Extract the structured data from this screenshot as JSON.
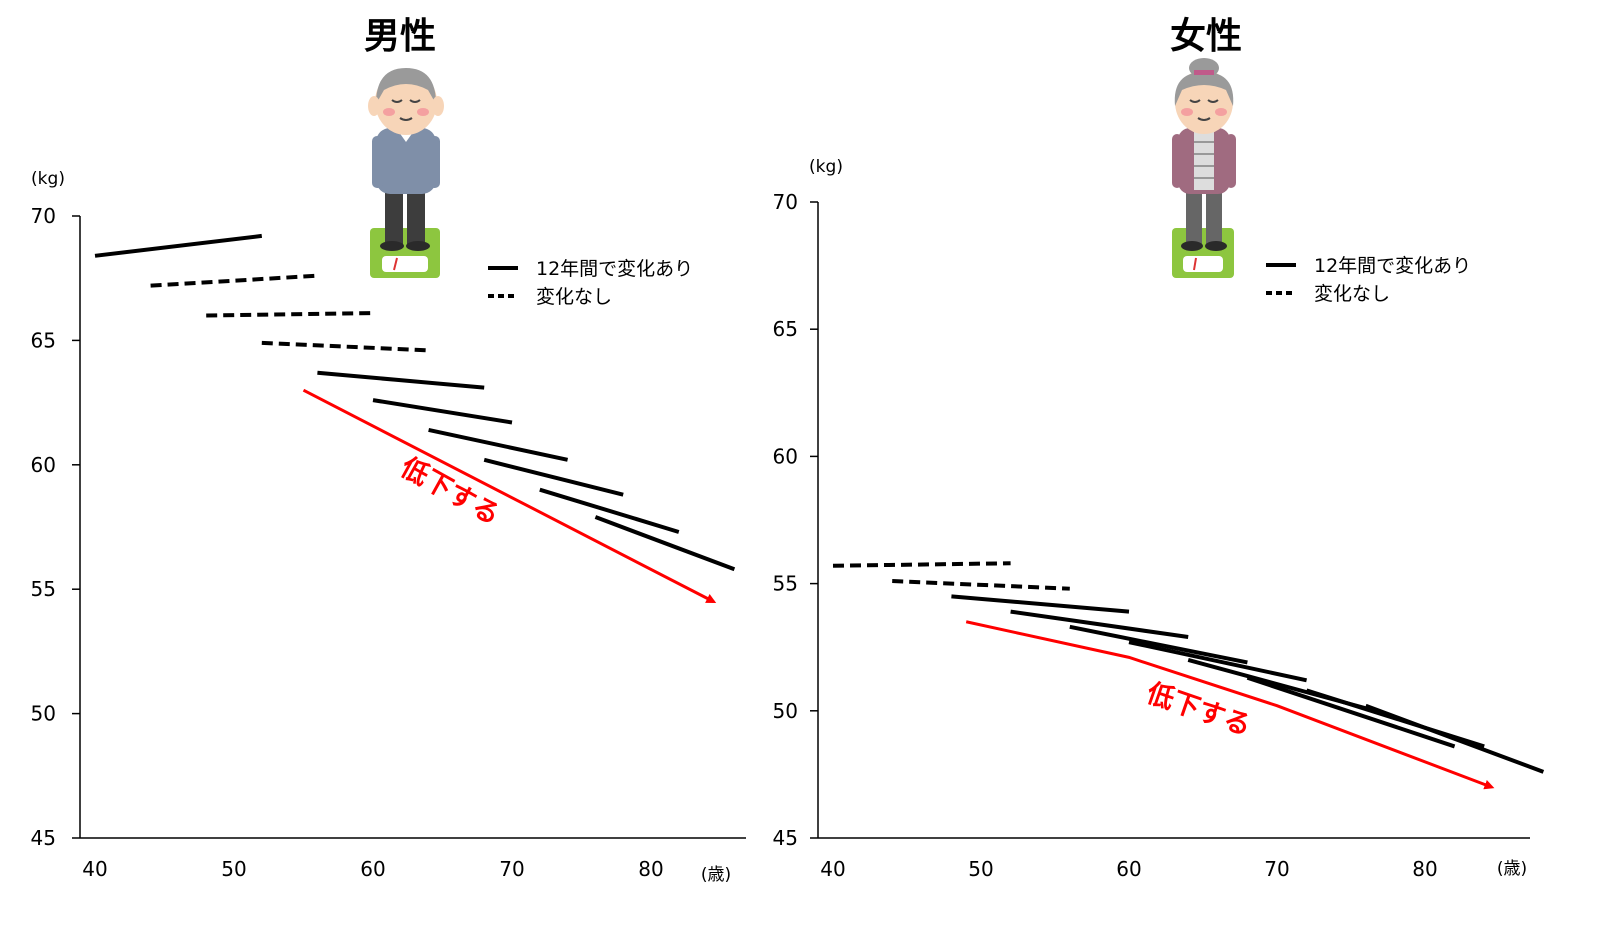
{
  "chart_data": [
    {
      "type": "line",
      "title": "男性",
      "ylabel": "(kg)",
      "xlabel": "(歳)",
      "xlim": [
        40,
        85
      ],
      "ylim": [
        45,
        70
      ],
      "xticks": [
        40,
        50,
        60,
        70,
        80
      ],
      "yticks": [
        45,
        50,
        55,
        60,
        65,
        70
      ],
      "legend": {
        "placement": "top-right",
        "items": [
          {
            "label": "12年間で変化あり",
            "style": "solid"
          },
          {
            "label": "変化なし",
            "style": "dashed"
          }
        ]
      },
      "series": [
        {
          "style": "solid",
          "x": [
            40,
            52
          ],
          "y": [
            68.4,
            69.2
          ]
        },
        {
          "style": "dashed",
          "x": [
            44,
            56
          ],
          "y": [
            67.2,
            67.6
          ]
        },
        {
          "style": "dashed",
          "x": [
            48,
            60
          ],
          "y": [
            66.0,
            66.1
          ]
        },
        {
          "style": "dashed",
          "x": [
            52,
            64
          ],
          "y": [
            64.9,
            64.6
          ]
        },
        {
          "style": "solid",
          "x": [
            56,
            68
          ],
          "y": [
            63.7,
            63.1
          ]
        },
        {
          "style": "solid",
          "x": [
            60,
            70
          ],
          "y": [
            62.6,
            61.7
          ]
        },
        {
          "style": "solid",
          "x": [
            64,
            74
          ],
          "y": [
            61.4,
            60.2
          ]
        },
        {
          "style": "solid",
          "x": [
            68,
            78
          ],
          "y": [
            60.2,
            58.8
          ]
        },
        {
          "style": "solid",
          "x": [
            72,
            82
          ],
          "y": [
            59.0,
            57.3
          ]
        },
        {
          "style": "solid",
          "x": [
            76,
            86
          ],
          "y": [
            57.9,
            55.8
          ]
        }
      ],
      "trend": {
        "label": "低下する",
        "color": "#ff0000",
        "x": [
          55,
          84.5
        ],
        "y": [
          63.0,
          54.5
        ]
      }
    },
    {
      "type": "line",
      "title": "女性",
      "ylabel": "(kg)",
      "xlabel": "(歳)",
      "xlim": [
        40,
        86
      ],
      "ylim": [
        45,
        70
      ],
      "xticks": [
        40,
        50,
        60,
        70,
        80
      ],
      "yticks": [
        45,
        50,
        55,
        60,
        65,
        70
      ],
      "legend": {
        "placement": "top-right",
        "items": [
          {
            "label": "12年間で変化あり",
            "style": "solid"
          },
          {
            "label": "変化なし",
            "style": "dashed"
          }
        ]
      },
      "series": [
        {
          "style": "dashed",
          "x": [
            40,
            52
          ],
          "y": [
            55.7,
            55.8
          ]
        },
        {
          "style": "dashed",
          "x": [
            44,
            56
          ],
          "y": [
            55.1,
            54.8
          ]
        },
        {
          "style": "solid",
          "x": [
            48,
            60
          ],
          "y": [
            54.5,
            53.9
          ]
        },
        {
          "style": "solid",
          "x": [
            52,
            64
          ],
          "y": [
            53.9,
            52.9
          ]
        },
        {
          "style": "solid",
          "x": [
            56,
            68
          ],
          "y": [
            53.3,
            51.9
          ]
        },
        {
          "style": "solid",
          "x": [
            60,
            72
          ],
          "y": [
            52.7,
            51.2
          ]
        },
        {
          "style": "solid",
          "x": [
            64,
            76
          ],
          "y": [
            52.0,
            50.1
          ]
        },
        {
          "style": "solid",
          "x": [
            68,
            82
          ],
          "y": [
            51.3,
            48.6
          ]
        },
        {
          "style": "solid",
          "x": [
            72,
            84
          ],
          "y": [
            50.8,
            48.6
          ]
        },
        {
          "style": "solid",
          "x": [
            76,
            88
          ],
          "y": [
            50.2,
            47.6
          ]
        }
      ],
      "trend": {
        "label": "低下する",
        "color": "#ff0000",
        "x": [
          49,
          60,
          70,
          84.5
        ],
        "y": [
          53.5,
          52.1,
          50.2,
          47.0
        ]
      }
    }
  ]
}
